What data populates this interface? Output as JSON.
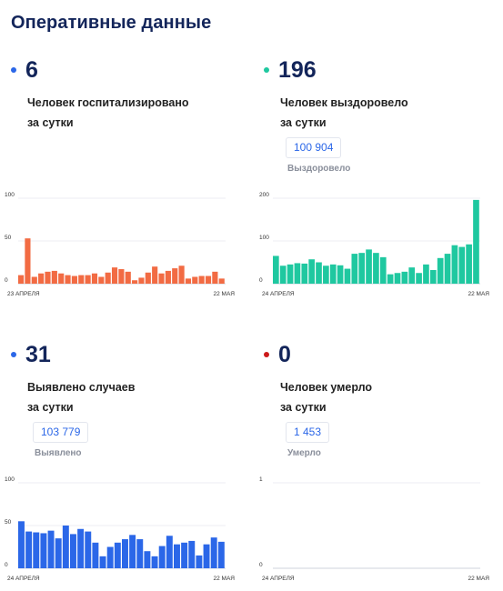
{
  "header": {
    "title": "Оперативные данные"
  },
  "cards": [
    {
      "id": "hospitalized",
      "value": "6",
      "label_line1": "Человек госпитализировано",
      "label_line2": "за сутки",
      "dot_color": "#2b67e8",
      "total": null,
      "total_caption": null
    },
    {
      "id": "recovered",
      "value": "196",
      "label_line1": "Человек выздоровело",
      "label_line2": "за сутки",
      "dot_color": "#1fc8a0",
      "total": "100 904",
      "total_caption": "Выздоровело"
    },
    {
      "id": "cases",
      "value": "31",
      "label_line1": "Выявлено случаев",
      "label_line2": "за сутки",
      "dot_color": "#2b67e8",
      "total": "103 779",
      "total_caption": "Выявлено"
    },
    {
      "id": "deaths",
      "value": "0",
      "label_line1": "Человек умерло",
      "label_line2": "за сутки",
      "dot_color": "#cc1a1a",
      "total": "1 453",
      "total_caption": "Умерло"
    }
  ],
  "chart_data": [
    {
      "id": "hospitalized",
      "type": "bar",
      "color": "#f26b43",
      "ylim": [
        0,
        100
      ],
      "yticks": [
        100,
        50,
        0
      ],
      "x_start_label": "23 АПРЕЛЯ",
      "x_end_label": "22 МАЯ",
      "values": [
        10,
        53,
        8,
        12,
        14,
        15,
        12,
        10,
        9,
        10,
        10,
        12,
        8,
        13,
        19,
        17,
        14,
        4,
        7,
        13,
        20,
        12,
        15,
        18,
        21,
        6,
        8,
        9,
        9,
        14,
        6
      ]
    },
    {
      "id": "recovered",
      "type": "bar",
      "color": "#1fc8a0",
      "ylim": [
        0,
        200
      ],
      "yticks": [
        200,
        100,
        0
      ],
      "x_start_label": "24 АПРЕЛЯ",
      "x_end_label": "22 МАЯ",
      "values": [
        65,
        42,
        45,
        48,
        47,
        57,
        50,
        42,
        45,
        43,
        35,
        70,
        72,
        80,
        72,
        62,
        22,
        25,
        28,
        38,
        25,
        45,
        32,
        60,
        70,
        90,
        86,
        92,
        196
      ]
    },
    {
      "id": "cases",
      "type": "bar",
      "color": "#2b67e8",
      "ylim": [
        0,
        100
      ],
      "yticks": [
        100,
        50,
        0
      ],
      "x_start_label": "24 АПРЕЛЯ",
      "x_end_label": "22 МАЯ",
      "values": [
        55,
        43,
        42,
        41,
        44,
        35,
        50,
        40,
        46,
        43,
        30,
        14,
        25,
        30,
        34,
        39,
        34,
        20,
        14,
        26,
        38,
        28,
        30,
        32,
        15,
        28,
        36,
        31
      ]
    },
    {
      "id": "deaths",
      "type": "bar",
      "color": "#cc1a1a",
      "ylim": [
        0,
        1
      ],
      "yticks": [
        1,
        0
      ],
      "x_start_label": "24 АПРЕЛЯ",
      "x_end_label": "22 МАЯ",
      "values": []
    }
  ]
}
